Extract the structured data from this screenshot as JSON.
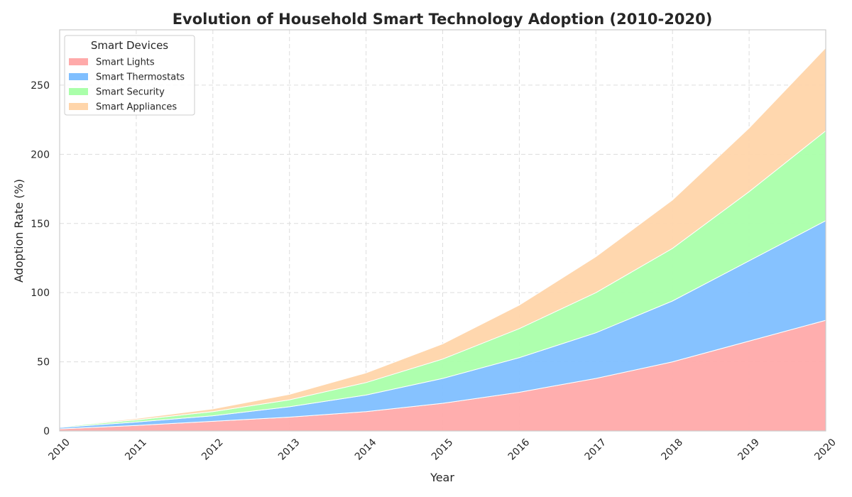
{
  "chart_data": {
    "type": "area",
    "stacked": true,
    "title": "Evolution of Household Smart Technology Adoption (2010-2020)",
    "xlabel": "Year",
    "ylabel": "Adoption Rate (%)",
    "x": [
      2010,
      2011,
      2012,
      2013,
      2014,
      2015,
      2016,
      2017,
      2018,
      2019,
      2020
    ],
    "xlim": [
      2010,
      2020
    ],
    "ylim": [
      0,
      290
    ],
    "yticks": [
      0,
      50,
      100,
      150,
      200,
      250
    ],
    "grid": true,
    "legend": {
      "title": "Smart Devices",
      "placement": "top-left"
    },
    "series": [
      {
        "name": "Smart Lights",
        "color": "#ffaaaa",
        "values": [
          1.5,
          4,
          7,
          10,
          14,
          20,
          28,
          38,
          50,
          65,
          80
        ]
      },
      {
        "name": "Smart Thermostats",
        "color": "#80bfff",
        "values": [
          1,
          2.5,
          4,
          7.5,
          12,
          18,
          25,
          33,
          44,
          58,
          72
        ]
      },
      {
        "name": "Smart Security",
        "color": "#aaffaa",
        "values": [
          0.5,
          1.5,
          3,
          5,
          9,
          14,
          21,
          29,
          38,
          50,
          65
        ]
      },
      {
        "name": "Smart Appliances",
        "color": "#ffd5aa",
        "values": [
          0.2,
          1,
          2,
          4,
          7,
          11,
          17,
          26,
          35,
          46,
          60
        ]
      }
    ]
  }
}
